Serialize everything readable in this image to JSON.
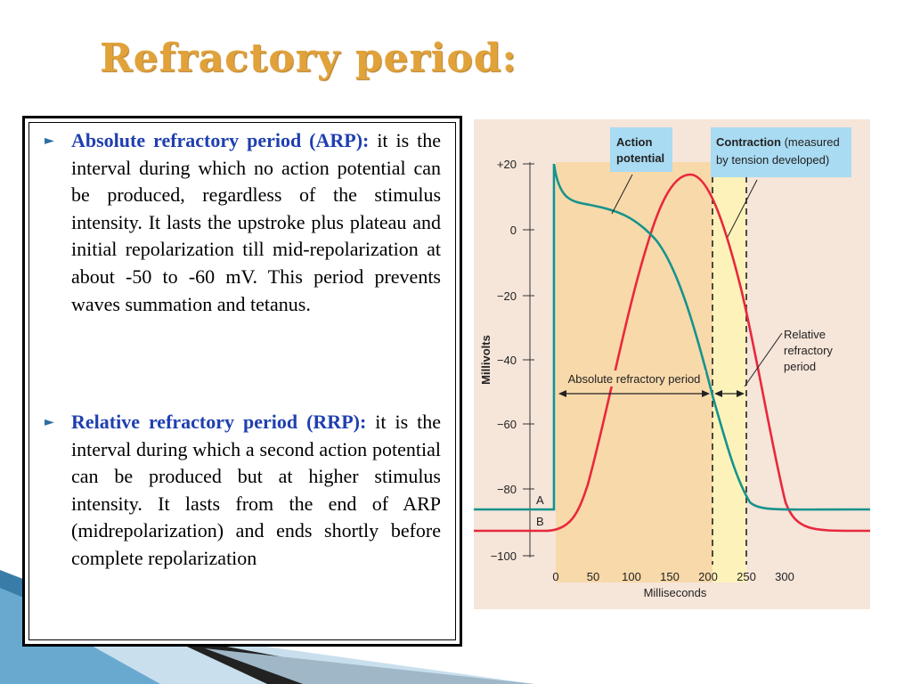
{
  "title": "Refractory period:",
  "bullets": [
    {
      "term": "Absolute refractory period (ARP):",
      "text": "it is the interval during which no action potential can be produced, regardless of the stimulus intensity. It lasts the upstroke plus plateau and initial repolarization till mid-repolarization at about -50 to -60 mV. This period prevents waves summation and tetanus."
    },
    {
      "term": "Relative refractory period (RRP):",
      "text": "it is the interval during which a second action potential can be produced but at higher stimulus intensity.  It lasts from the end of ARP (midrepolarization) and ends shortly before complete repolarization"
    }
  ],
  "figure": {
    "ylabel": "Millivolts",
    "xlabel": "Milliseconds",
    "yticks": [
      "+20",
      "0",
      "−20",
      "−40",
      "−60",
      "−80",
      "−100"
    ],
    "xticks": [
      "0",
      "50",
      "100",
      "150",
      "200",
      "250",
      "300"
    ],
    "label_action_line1": "Action",
    "label_action_line2": "potential",
    "label_contraction_line1_bold": "Contraction",
    "label_contraction_line1_rest": " (measured",
    "label_contraction_line2": "by tension developed)",
    "label_relative_1": "Relative",
    "label_relative_2": "refractory",
    "label_relative_3": "period",
    "label_absolute": "Absolute refractory period",
    "label_A": "A",
    "label_B": "B",
    "colors": {
      "action_potential": "#16938c",
      "contraction": "#e8283c",
      "arp_shade": "#f8d9aa",
      "rrp_shade": "#fdf3ba",
      "label_box": "#a9dbf2",
      "background": "#f6e5d9"
    }
  }
}
